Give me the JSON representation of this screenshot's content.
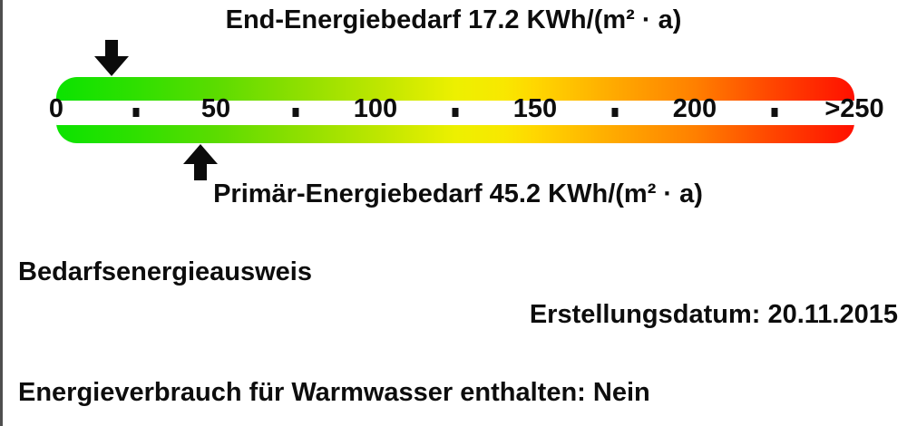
{
  "page": {
    "background": "#ffffff",
    "left_border_color": "#4f4f4f",
    "text_color": "#0d0d0d",
    "arrow_color": "#0b0b0b"
  },
  "chart_data": {
    "type": "linear-gauge",
    "title_top": "End-Energiebedarf 17.2 KWh/(m² · a)",
    "title_bottom": "Primär-Energiebedarf 45.2 KWh/(m² · a)",
    "unit": "KWh/(m² · a)",
    "scale": {
      "min": 0,
      "max": 250,
      "major_ticks": [
        {
          "value": 0,
          "label": "0"
        },
        {
          "value": 50,
          "label": "50"
        },
        {
          "value": 100,
          "label": "100"
        },
        {
          "value": 150,
          "label": "150"
        },
        {
          "value": 200,
          "label": "200"
        },
        {
          "value": 250,
          "label": ">250"
        }
      ],
      "minor_ticks": [
        25,
        75,
        125,
        175,
        225
      ],
      "gradient": [
        {
          "value": 0,
          "color": "#0be300"
        },
        {
          "value": 25,
          "color": "#2fe000"
        },
        {
          "value": 50,
          "color": "#5bdc00"
        },
        {
          "value": 75,
          "color": "#8cdf00"
        },
        {
          "value": 100,
          "color": "#bce600"
        },
        {
          "value": 125,
          "color": "#edf000"
        },
        {
          "value": 140,
          "color": "#f8e800"
        },
        {
          "value": 150,
          "color": "#ffd700"
        },
        {
          "value": 175,
          "color": "#ffa900"
        },
        {
          "value": 200,
          "color": "#ff8000"
        },
        {
          "value": 225,
          "color": "#ff4400"
        },
        {
          "value": 250,
          "color": "#ff1000"
        }
      ]
    },
    "markers": [
      {
        "name": "End-Energiebedarf",
        "value": 17.2,
        "arrow": "down"
      },
      {
        "name": "Primär-Energiebedarf",
        "value": 45.2,
        "arrow": "up"
      }
    ]
  },
  "info": {
    "certificate_type": "Bedarfsenergieausweis",
    "date_line": "Erstellungsdatum: 20.11.2015",
    "warm_water_line": "Energieverbrauch für Warmwasser enthalten: Nein"
  }
}
